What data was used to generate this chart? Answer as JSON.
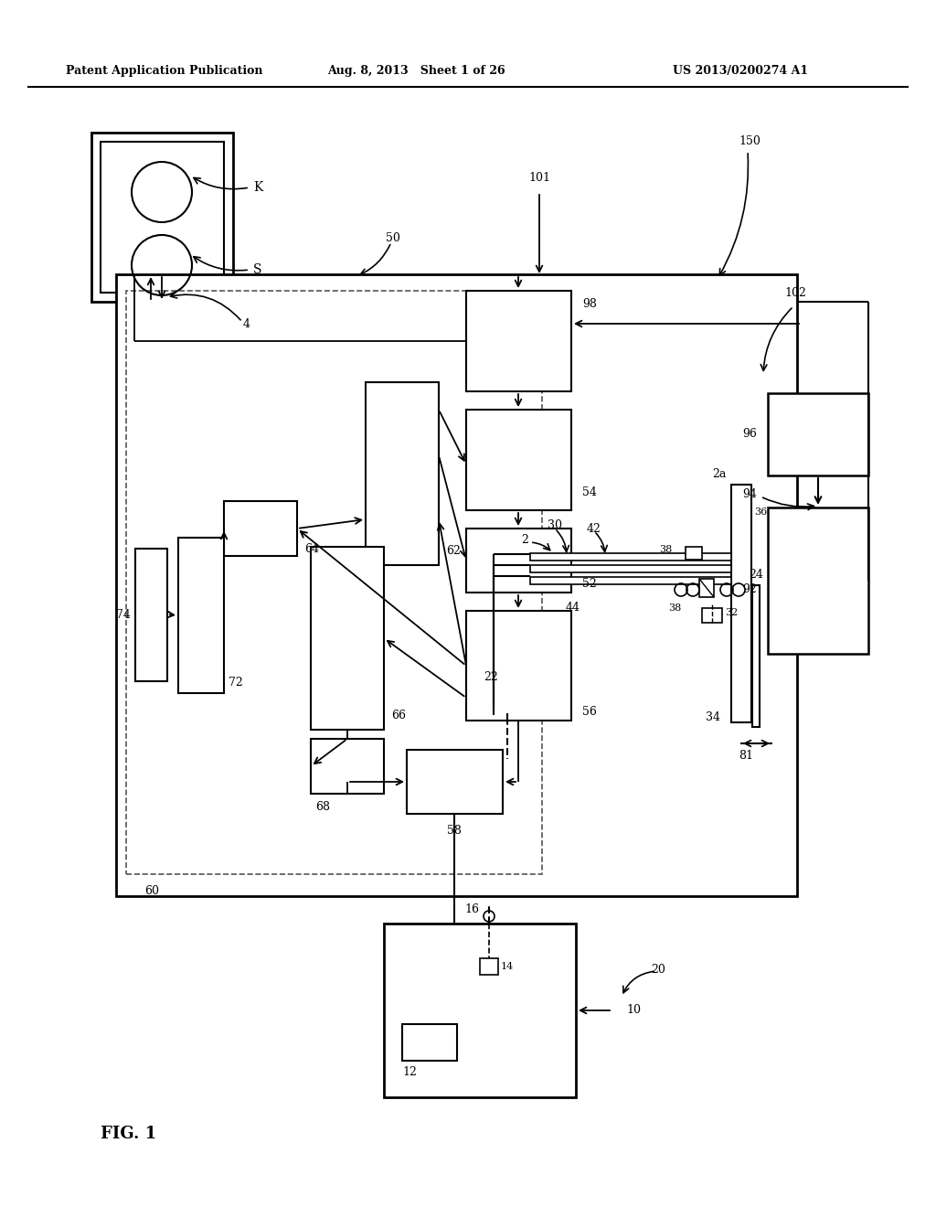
{
  "title_left": "Patent Application Publication",
  "title_mid": "Aug. 8, 2013   Sheet 1 of 26",
  "title_right": "US 2013/0200274 A1",
  "fig_label": "FIG. 1",
  "bg_color": "#ffffff",
  "line_color": "#000000",
  "text_color": "#000000"
}
